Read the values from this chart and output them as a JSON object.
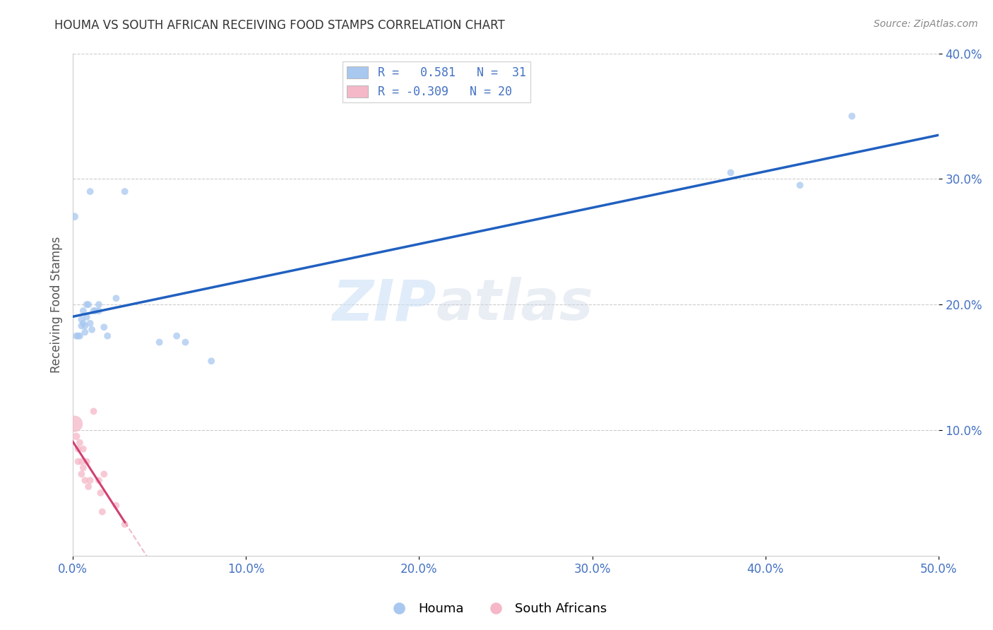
{
  "title": "HOUMA VS SOUTH AFRICAN RECEIVING FOOD STAMPS CORRELATION CHART",
  "source": "Source: ZipAtlas.com",
  "ylabel": "Receiving Food Stamps",
  "xlim": [
    0.0,
    0.5
  ],
  "ylim": [
    0.0,
    0.4
  ],
  "xtick_labels": [
    "0.0%",
    "10.0%",
    "20.0%",
    "30.0%",
    "40.0%",
    "50.0%"
  ],
  "xtick_vals": [
    0.0,
    0.1,
    0.2,
    0.3,
    0.4,
    0.5
  ],
  "ytick_labels": [
    "10.0%",
    "20.0%",
    "30.0%",
    "40.0%"
  ],
  "ytick_vals": [
    0.1,
    0.2,
    0.3,
    0.4
  ],
  "houma_color": "#a8c8f0",
  "sa_color": "#f5b8c8",
  "houma_line_color": "#2060c0",
  "sa_line_color": "#d04070",
  "houma_R": 0.581,
  "houma_N": 31,
  "sa_R": -0.309,
  "sa_N": 20,
  "legend_label_houma": "Houma",
  "legend_label_sa": "South Africans",
  "watermark_zip": "ZIP",
  "watermark_atlas": "atlas",
  "houma_x": [
    0.001,
    0.002,
    0.003,
    0.004,
    0.005,
    0.005,
    0.006,
    0.006,
    0.007,
    0.007,
    0.008,
    0.008,
    0.009,
    0.01,
    0.011,
    0.012,
    0.013,
    0.015,
    0.015,
    0.018,
    0.02,
    0.025,
    0.03,
    0.05,
    0.06,
    0.065,
    0.08,
    0.38,
    0.42,
    0.45,
    0.01
  ],
  "houma_y": [
    0.27,
    0.175,
    0.175,
    0.175,
    0.183,
    0.188,
    0.185,
    0.195,
    0.183,
    0.178,
    0.19,
    0.2,
    0.2,
    0.185,
    0.18,
    0.195,
    0.195,
    0.195,
    0.2,
    0.182,
    0.175,
    0.205,
    0.29,
    0.17,
    0.175,
    0.17,
    0.155,
    0.305,
    0.295,
    0.35,
    0.29
  ],
  "houma_sizes": [
    60,
    50,
    50,
    50,
    50,
    50,
    50,
    50,
    50,
    50,
    50,
    50,
    50,
    50,
    50,
    50,
    50,
    50,
    50,
    50,
    50,
    50,
    50,
    50,
    50,
    50,
    50,
    50,
    50,
    50,
    50
  ],
  "sa_x": [
    0.001,
    0.002,
    0.003,
    0.003,
    0.004,
    0.005,
    0.005,
    0.006,
    0.006,
    0.007,
    0.008,
    0.009,
    0.01,
    0.012,
    0.015,
    0.016,
    0.017,
    0.018,
    0.025,
    0.03
  ],
  "sa_y": [
    0.105,
    0.095,
    0.085,
    0.075,
    0.09,
    0.075,
    0.065,
    0.085,
    0.07,
    0.06,
    0.075,
    0.055,
    0.06,
    0.115,
    0.06,
    0.05,
    0.035,
    0.065,
    0.04,
    0.025
  ],
  "sa_sizes": [
    280,
    60,
    50,
    50,
    50,
    50,
    50,
    50,
    50,
    50,
    50,
    50,
    50,
    50,
    50,
    50,
    50,
    50,
    50,
    50
  ],
  "background_color": "#ffffff",
  "grid_color": "#cccccc",
  "tick_color": "#4472c4",
  "title_color": "#333333",
  "ylabel_color": "#555555"
}
